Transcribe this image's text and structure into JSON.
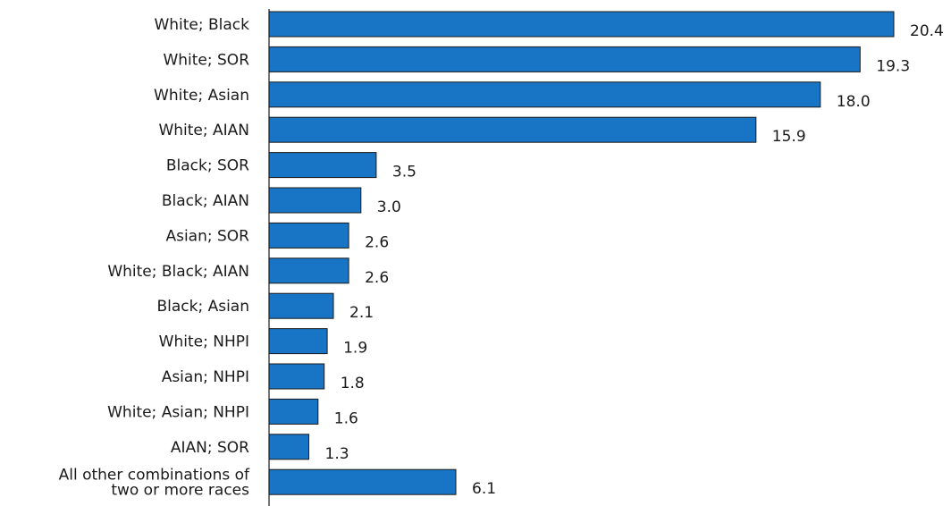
{
  "chart_data": {
    "type": "bar",
    "orientation": "horizontal",
    "categories": [
      [
        "White; Black"
      ],
      [
        "White; SOR"
      ],
      [
        "White; Asian"
      ],
      [
        "White; AIAN"
      ],
      [
        "Black; SOR"
      ],
      [
        "Black; AIAN"
      ],
      [
        "Asian; SOR"
      ],
      [
        "White; Black; AIAN"
      ],
      [
        "Black; Asian"
      ],
      [
        "White; NHPI"
      ],
      [
        "Asian; NHPI"
      ],
      [
        "White; Asian; NHPI"
      ],
      [
        "AIAN; SOR"
      ],
      [
        "All other combinations of",
        "two or more races"
      ]
    ],
    "values": [
      20.4,
      19.3,
      18.0,
      15.9,
      3.5,
      3.0,
      2.6,
      2.6,
      2.1,
      1.9,
      1.8,
      1.6,
      1.3,
      6.1
    ],
    "value_labels": [
      "20.4",
      "19.3",
      "18.0",
      "15.9",
      "3.5",
      "3.0",
      "2.6",
      "2.6",
      "2.1",
      "1.9",
      "1.8",
      "1.6",
      "1.3",
      "6.1"
    ],
    "title": "",
    "xlabel": "",
    "ylabel": "",
    "xlim": [
      0,
      20.4
    ],
    "grid": false,
    "bar_color": "#1874c4",
    "bar_edge_color": "#1a1a1a",
    "axis_color": "#1a1a1a"
  }
}
